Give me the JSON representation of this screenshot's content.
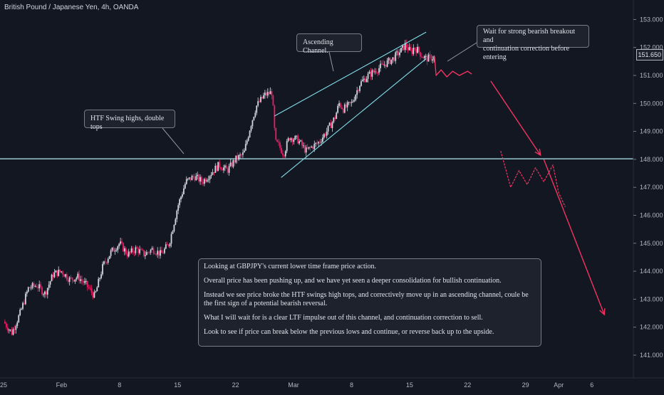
{
  "chart_data": {
    "type": "candlestick",
    "title": "British Pound / Japanese Yen, 4h, OANDA",
    "ylim": [
      140.55,
      153.35
    ],
    "y_ticks": [
      141,
      142,
      143,
      144,
      145,
      146,
      147,
      148,
      149,
      150,
      151,
      152,
      153
    ],
    "y_tick_labels": [
      "141.000",
      "142.000",
      "143.000",
      "144.000",
      "145.000",
      "146.000",
      "147.000",
      "148.000",
      "149.000",
      "150.000",
      "151.000",
      "152.000",
      "153.000"
    ],
    "x_ticks": [
      {
        "label": "25",
        "t": 0
      },
      {
        "label": "Feb",
        "t": 7
      },
      {
        "label": "8",
        "t": 14
      },
      {
        "label": "15",
        "t": 21
      },
      {
        "label": "22",
        "t": 28
      },
      {
        "label": "Mar",
        "t": 35
      },
      {
        "label": "8",
        "t": 42
      },
      {
        "label": "15",
        "t": 49
      },
      {
        "label": "22",
        "t": 56
      },
      {
        "label": "29",
        "t": 63
      },
      {
        "label": "Apr",
        "t": 67
      },
      {
        "label": "6",
        "t": 71
      }
    ],
    "last_price": 151.65,
    "last_price_label": "151.650",
    "horizontal_level": 148.02,
    "path": [
      [
        0,
        142.2
      ],
      [
        1,
        141.8
      ],
      [
        2,
        142.5
      ],
      [
        3,
        143.4
      ],
      [
        4,
        143.5
      ],
      [
        5,
        143.2
      ],
      [
        6,
        143.9
      ],
      [
        7,
        144.0
      ],
      [
        8,
        143.7
      ],
      [
        9,
        143.8
      ],
      [
        10,
        143.5
      ],
      [
        11,
        143.1
      ],
      [
        12,
        144.2
      ],
      [
        13,
        144.7
      ],
      [
        14,
        145.0
      ],
      [
        15,
        144.6
      ],
      [
        16,
        144.8
      ],
      [
        17,
        144.6
      ],
      [
        18,
        144.8
      ],
      [
        19,
        144.6
      ],
      [
        20,
        145.0
      ],
      [
        21,
        146.3
      ],
      [
        22,
        147.2
      ],
      [
        23,
        147.4
      ],
      [
        24,
        147.2
      ],
      [
        25,
        147.5
      ],
      [
        26,
        147.8
      ],
      [
        27,
        147.6
      ],
      [
        28,
        148.0
      ],
      [
        29,
        148.2
      ],
      [
        29.8,
        149.2
      ],
      [
        30.5,
        149.9
      ],
      [
        31.5,
        150.3
      ],
      [
        32.4,
        150.4
      ],
      [
        32.8,
        148.6
      ],
      [
        33.2,
        148.5
      ],
      [
        33.8,
        148.2
      ],
      [
        34.5,
        148.8
      ],
      [
        35.5,
        148.7
      ],
      [
        36.5,
        148.3
      ],
      [
        37,
        148.4
      ],
      [
        38,
        148.6
      ],
      [
        39,
        149.0
      ],
      [
        40,
        149.5
      ],
      [
        40.5,
        150.0
      ],
      [
        41,
        149.8
      ],
      [
        42,
        150.0
      ],
      [
        43,
        150.7
      ],
      [
        44,
        151.0
      ],
      [
        45,
        151.2
      ],
      [
        46,
        151.4
      ],
      [
        47,
        151.6
      ],
      [
        48,
        151.9
      ],
      [
        48.5,
        152.1
      ],
      [
        49.2,
        151.8
      ],
      [
        49.5,
        152.0
      ],
      [
        50,
        151.9
      ],
      [
        50.5,
        151.7
      ],
      [
        51,
        151.6
      ],
      [
        52,
        151.65
      ]
    ],
    "projection_channel": [
      [
        52.0,
        151.7
      ],
      [
        52.2,
        151.0
      ],
      [
        52.8,
        151.2
      ],
      [
        53.5,
        150.95
      ],
      [
        54.2,
        151.15
      ],
      [
        55,
        151.0
      ],
      [
        56,
        151.15
      ],
      [
        56.5,
        151.05
      ]
    ],
    "projection_retest": [
      [
        60,
        148.3
      ],
      [
        61.2,
        147.0
      ],
      [
        62.2,
        147.6
      ],
      [
        63.2,
        147.1
      ],
      [
        64.2,
        147.7
      ],
      [
        65.2,
        147.2
      ],
      [
        66.3,
        147.8
      ],
      [
        67,
        146.8
      ],
      [
        67.8,
        146.3
      ]
    ],
    "channel_lines": [
      {
        "from": [
          32.7,
          149.55
        ],
        "to": [
          51.0,
          152.55
        ]
      },
      {
        "from": [
          33.5,
          147.35
        ],
        "to": [
          51.0,
          151.6
        ]
      }
    ],
    "arrows": [
      {
        "from": [
          58.8,
          150.8
        ],
        "to": [
          64.8,
          148.15
        ]
      },
      {
        "from": [
          65.2,
          148.0
        ],
        "to": [
          72.5,
          142.45
        ]
      }
    ],
    "colors": {
      "up": "#d1d4dc",
      "down": "#e91e63",
      "level": "#b2ebf2",
      "channel": "#80deea",
      "projection": "#f23361",
      "arrow": "#f23361"
    },
    "grid": false,
    "legend": "none"
  },
  "annotations": {
    "htf": "HTF Swing highs, double tops",
    "channel": "Ascending Channel.",
    "wait_line1": "Wait for strong bearish breakout and",
    "wait_line2": "continuation correction before entering",
    "note": [
      "Looking at GBPJPY's current lower time frame price action.",
      "Overall price has been pushing up, and we have yet seen a deeper consolidation for bullish continuation.",
      "Instead we see price broke the HTF swings high tops, and correctively move up in an ascending channel, coule be the first sign of a potential bearish reversal.",
      "What I will wait for is a clear LTF impulse out of this channel, and continuation correction to sell.",
      "Look to see if price can break below the previous lows and continue, or reverse back up to the upside."
    ]
  }
}
